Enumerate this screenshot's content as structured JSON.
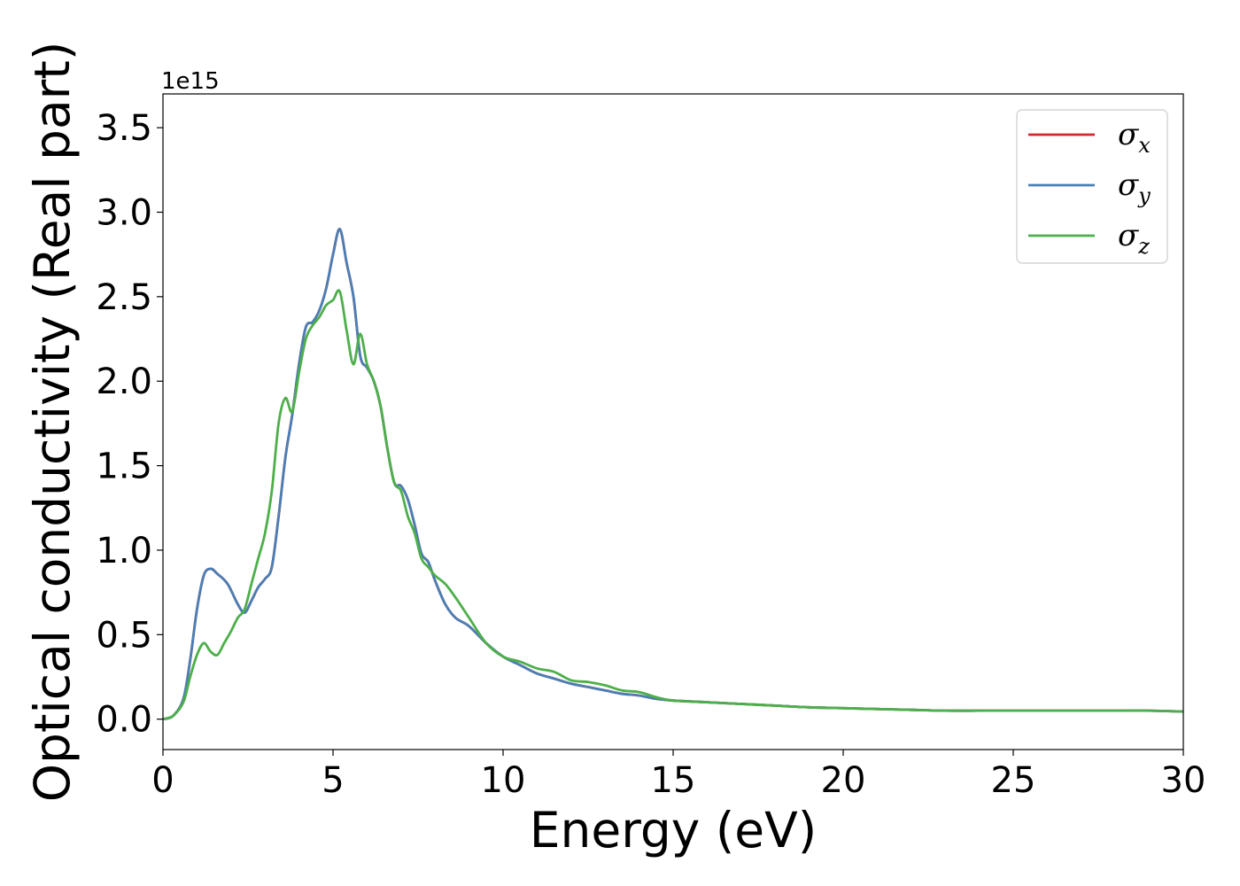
{
  "chart_data": {
    "type": "line",
    "xlabel": "Energy (eV)",
    "ylabel": "Optical conductivity (Real part)",
    "y_offset_text": "1e15",
    "xlim": [
      0,
      30
    ],
    "ylim": [
      -0.18,
      3.7
    ],
    "x_ticks": [
      0,
      5,
      10,
      15,
      20,
      25,
      30
    ],
    "x_tick_labels": [
      "0",
      "5",
      "10",
      "15",
      "20",
      "25",
      "30"
    ],
    "y_ticks": [
      0.0,
      0.5,
      1.0,
      1.5,
      2.0,
      2.5,
      3.0,
      3.5
    ],
    "y_tick_labels": [
      "0.0",
      "0.5",
      "1.0",
      "1.5",
      "2.0",
      "2.5",
      "3.0",
      "3.5"
    ],
    "grid": false,
    "legend_position": "top-right",
    "series": [
      {
        "name": "σ",
        "subscript": "x",
        "color": "#d62728",
        "x": [
          0,
          0.3,
          0.6,
          0.8,
          1.0,
          1.2,
          1.4,
          1.6,
          1.9,
          2.2,
          2.4,
          2.6,
          2.8,
          3.0,
          3.2,
          3.4,
          3.6,
          3.8,
          4.0,
          4.2,
          4.4,
          4.6,
          4.8,
          5.0,
          5.2,
          5.4,
          5.6,
          5.8,
          6.0,
          6.2,
          6.4,
          6.6,
          6.8,
          7.0,
          7.2,
          7.4,
          7.6,
          7.8,
          8.0,
          8.3,
          8.6,
          9.0,
          9.5,
          10.0,
          10.5,
          11.0,
          11.5,
          12.0,
          12.5,
          13.0,
          13.5,
          14.0,
          14.5,
          15.0,
          16.0,
          17.0,
          18.0,
          19.0,
          20.0,
          21.0,
          22.0,
          23.0,
          24.0,
          25.0,
          26.0,
          27.0,
          28.0,
          29.0,
          30.0
        ],
        "values": [
          0.0,
          0.02,
          0.12,
          0.35,
          0.65,
          0.85,
          0.89,
          0.86,
          0.8,
          0.68,
          0.63,
          0.7,
          0.78,
          0.83,
          0.9,
          1.2,
          1.55,
          1.8,
          2.1,
          2.32,
          2.35,
          2.42,
          2.55,
          2.75,
          2.9,
          2.7,
          2.5,
          2.15,
          2.08,
          2.0,
          1.85,
          1.6,
          1.4,
          1.38,
          1.3,
          1.15,
          0.98,
          0.93,
          0.82,
          0.68,
          0.6,
          0.55,
          0.45,
          0.37,
          0.32,
          0.27,
          0.24,
          0.21,
          0.19,
          0.17,
          0.15,
          0.14,
          0.12,
          0.11,
          0.1,
          0.09,
          0.08,
          0.07,
          0.065,
          0.06,
          0.055,
          0.05,
          0.05,
          0.05,
          0.05,
          0.05,
          0.05,
          0.05,
          0.045
        ]
      },
      {
        "name": "σ",
        "subscript": "y",
        "color": "#4a7fb5",
        "x": [
          0,
          0.3,
          0.6,
          0.8,
          1.0,
          1.2,
          1.4,
          1.6,
          1.9,
          2.2,
          2.4,
          2.6,
          2.8,
          3.0,
          3.2,
          3.4,
          3.6,
          3.8,
          4.0,
          4.2,
          4.4,
          4.6,
          4.8,
          5.0,
          5.2,
          5.4,
          5.6,
          5.8,
          6.0,
          6.2,
          6.4,
          6.6,
          6.8,
          7.0,
          7.2,
          7.4,
          7.6,
          7.8,
          8.0,
          8.3,
          8.6,
          9.0,
          9.5,
          10.0,
          10.5,
          11.0,
          11.5,
          12.0,
          12.5,
          13.0,
          13.5,
          14.0,
          14.5,
          15.0,
          16.0,
          17.0,
          18.0,
          19.0,
          20.0,
          21.0,
          22.0,
          23.0,
          24.0,
          25.0,
          26.0,
          27.0,
          28.0,
          29.0,
          30.0
        ],
        "values": [
          0.0,
          0.02,
          0.12,
          0.35,
          0.65,
          0.85,
          0.89,
          0.86,
          0.8,
          0.68,
          0.63,
          0.7,
          0.78,
          0.83,
          0.9,
          1.2,
          1.55,
          1.8,
          2.1,
          2.32,
          2.35,
          2.42,
          2.55,
          2.75,
          2.9,
          2.7,
          2.5,
          2.15,
          2.08,
          2.0,
          1.85,
          1.6,
          1.4,
          1.38,
          1.3,
          1.15,
          0.98,
          0.93,
          0.82,
          0.68,
          0.6,
          0.55,
          0.45,
          0.37,
          0.32,
          0.27,
          0.24,
          0.21,
          0.19,
          0.17,
          0.15,
          0.14,
          0.12,
          0.11,
          0.1,
          0.09,
          0.08,
          0.07,
          0.065,
          0.06,
          0.055,
          0.05,
          0.05,
          0.05,
          0.05,
          0.05,
          0.05,
          0.05,
          0.045
        ]
      },
      {
        "name": "σ",
        "subscript": "z",
        "color": "#4daf4a",
        "x": [
          0,
          0.3,
          0.6,
          0.8,
          1.0,
          1.2,
          1.4,
          1.6,
          1.8,
          2.0,
          2.2,
          2.4,
          2.6,
          2.8,
          3.0,
          3.2,
          3.4,
          3.6,
          3.8,
          4.0,
          4.2,
          4.4,
          4.6,
          4.8,
          5.0,
          5.2,
          5.4,
          5.6,
          5.8,
          6.0,
          6.2,
          6.4,
          6.6,
          6.8,
          7.0,
          7.2,
          7.4,
          7.6,
          7.8,
          8.0,
          8.3,
          8.6,
          9.0,
          9.5,
          10.0,
          10.5,
          11.0,
          11.5,
          12.0,
          12.5,
          13.0,
          13.5,
          14.0,
          14.5,
          15.0,
          16.0,
          17.0,
          18.0,
          19.0,
          20.0,
          21.0,
          22.0,
          23.0,
          24.0,
          25.0,
          26.0,
          27.0,
          28.0,
          29.0,
          30.0
        ],
        "values": [
          0.0,
          0.02,
          0.1,
          0.25,
          0.38,
          0.45,
          0.4,
          0.38,
          0.45,
          0.52,
          0.6,
          0.65,
          0.8,
          0.95,
          1.1,
          1.35,
          1.75,
          1.9,
          1.82,
          2.05,
          2.25,
          2.33,
          2.38,
          2.45,
          2.48,
          2.53,
          2.3,
          2.1,
          2.28,
          2.1,
          2.0,
          1.85,
          1.6,
          1.4,
          1.35,
          1.2,
          1.1,
          0.95,
          0.9,
          0.85,
          0.8,
          0.72,
          0.6,
          0.45,
          0.37,
          0.34,
          0.3,
          0.28,
          0.23,
          0.22,
          0.2,
          0.17,
          0.16,
          0.13,
          0.11,
          0.1,
          0.09,
          0.08,
          0.07,
          0.065,
          0.06,
          0.055,
          0.05,
          0.05,
          0.05,
          0.05,
          0.05,
          0.05,
          0.05,
          0.045
        ]
      }
    ]
  }
}
